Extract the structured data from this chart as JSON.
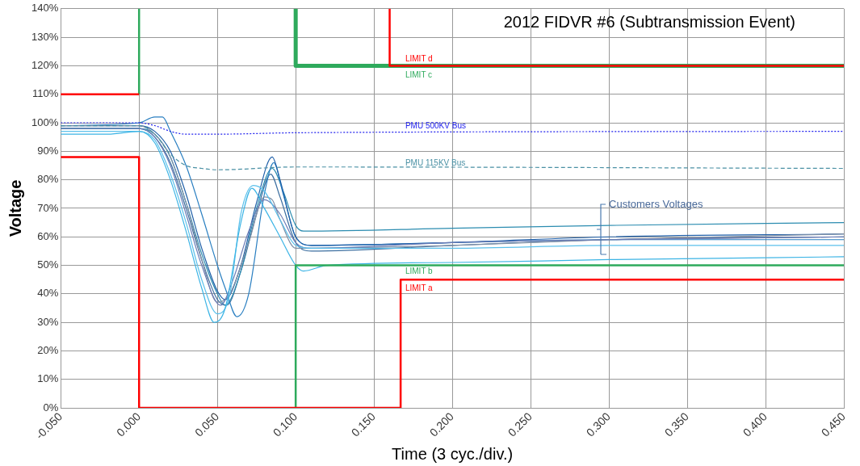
{
  "chart_data": {
    "type": "line",
    "title": "2012 FIDVR #6 (Subtransmission Event)",
    "xlabel": "Time (3 cyc./div.)",
    "ylabel": "Voltage",
    "xlim": [
      -0.05,
      0.45
    ],
    "xticks": [
      {
        "value": -0.05,
        "label": "-0.050"
      },
      {
        "value": 0,
        "label": "0.000"
      },
      {
        "value": 0.05,
        "label": "0.050"
      },
      {
        "value": 0.1,
        "label": "0.100"
      },
      {
        "value": 0.15,
        "label": "0.150"
      },
      {
        "value": 0.2,
        "label": "0.200"
      },
      {
        "value": 0.25,
        "label": "0.250"
      },
      {
        "value": 0.3,
        "label": "0.300"
      },
      {
        "value": 0.35,
        "label": "0.350"
      },
      {
        "value": 0.4,
        "label": "0.400"
      },
      {
        "value": 0.45,
        "label": "0.450"
      }
    ],
    "ylim": [
      0,
      140
    ],
    "yticks": [
      {
        "value": 0,
        "label": "0%"
      },
      {
        "value": 10,
        "label": "10%"
      },
      {
        "value": 20,
        "label": "20%"
      },
      {
        "value": 30,
        "label": "30%"
      },
      {
        "value": 40,
        "label": "40%"
      },
      {
        "value": 50,
        "label": "50%"
      },
      {
        "value": 60,
        "label": "60%"
      },
      {
        "value": 70,
        "label": "70%"
      },
      {
        "value": 80,
        "label": "80%"
      },
      {
        "value": 90,
        "label": "90%"
      },
      {
        "value": 100,
        "label": "100%"
      },
      {
        "value": 110,
        "label": "110%"
      },
      {
        "value": 120,
        "label": "120%"
      },
      {
        "value": 130,
        "label": "130%"
      },
      {
        "value": 140,
        "label": "140%"
      }
    ],
    "grid": true,
    "legend": false,
    "marker": "none",
    "annotations": [
      "Customers Voltages"
    ],
    "series": [
      {
        "name": "LIMIT d",
        "color": "#ff0000",
        "line_style": "solid",
        "x": [
          0.16,
          0.16,
          0.45
        ],
        "values": [
          140,
          120,
          120
        ]
      },
      {
        "name": "LIMIT c",
        "color": "#2eaa5c",
        "line_style": "solid",
        "x": [
          0.1,
          0.1,
          0.45
        ],
        "values": [
          140,
          120,
          120
        ]
      },
      {
        "name": "LIMIT a",
        "color": "#ff0000",
        "line_style": "solid",
        "x": [
          -0.05,
          0,
          0,
          0.167,
          0.167,
          0.45
        ],
        "values": [
          88,
          88,
          0,
          0,
          45,
          45
        ]
      },
      {
        "name": "LIMIT b",
        "color": "#2eaa5c",
        "line_style": "solid",
        "x": [
          0.1,
          0.1,
          0.45
        ],
        "values": [
          0,
          50,
          50
        ]
      },
      {
        "color": "#ff0000",
        "line_style": "solid",
        "x": [
          -0.05,
          0
        ],
        "values": [
          110,
          110
        ]
      },
      {
        "color": "#2eaa5c",
        "line_style": "solid",
        "x": [
          0,
          0
        ],
        "values": [
          110,
          140
        ]
      },
      {
        "name": "PMU 500KV Bus",
        "color": "#2222ee",
        "line_style": "dotted",
        "x": [
          -0.05,
          0,
          0.01,
          0.02,
          0.03,
          0.05,
          0.1,
          0.45
        ],
        "values": [
          100,
          100,
          99,
          97,
          96,
          96,
          96.5,
          97
        ]
      },
      {
        "name": "PMU 115KV Bus",
        "color": "#4a90a4",
        "line_style": "dashed",
        "x": [
          -0.05,
          0,
          0.01,
          0.02,
          0.03,
          0.04,
          0.05,
          0.1,
          0.45
        ],
        "values": [
          99,
          99,
          96,
          89,
          85,
          84,
          83.5,
          84.5,
          84
        ]
      },
      {
        "color": "#3cb4e5",
        "line_style": "solid",
        "x": [
          -0.05,
          -0.02,
          0,
          0.01,
          0.02,
          0.03,
          0.04,
          0.048,
          0.055,
          0.065,
          0.072,
          0.08,
          0.09,
          0.1,
          0.105,
          0.12,
          0.2,
          0.3,
          0.45
        ],
        "values": [
          96,
          96,
          97,
          93,
          80,
          62,
          42,
          30,
          35,
          65,
          77,
          70,
          60,
          50,
          48,
          50,
          51,
          52,
          53
        ]
      },
      {
        "color": "#5bc0eb",
        "line_style": "solid",
        "x": [
          -0.05,
          0,
          0.01,
          0.02,
          0.03,
          0.04,
          0.05,
          0.058,
          0.065,
          0.073,
          0.08,
          0.09,
          0.1,
          0.11,
          0.2,
          0.3,
          0.45
        ],
        "values": [
          97,
          97,
          94,
          82,
          65,
          45,
          33,
          40,
          68,
          78,
          76,
          66,
          57,
          56,
          56,
          57,
          57
        ]
      },
      {
        "color": "#6a7bb5",
        "line_style": "solid",
        "x": [
          -0.05,
          0,
          0.01,
          0.02,
          0.03,
          0.04,
          0.052,
          0.06,
          0.07,
          0.08,
          0.09,
          0.1,
          0.11,
          0.2,
          0.3,
          0.45
        ],
        "values": [
          98,
          98,
          95,
          85,
          68,
          50,
          36,
          45,
          62,
          73,
          68,
          58,
          56,
          58,
          59,
          60
        ]
      },
      {
        "color": "#7f8fa6",
        "line_style": "solid",
        "x": [
          -0.05,
          0,
          0.01,
          0.02,
          0.03,
          0.04,
          0.05,
          0.058,
          0.07,
          0.08,
          0.085,
          0.09,
          0.1,
          0.11,
          0.2,
          0.3,
          0.45
        ],
        "values": [
          99,
          99,
          96,
          88,
          72,
          52,
          37,
          40,
          58,
          74,
          73,
          66,
          56,
          56,
          57,
          59,
          61
        ]
      },
      {
        "color": "#1f5fa8",
        "line_style": "solid",
        "x": [
          -0.05,
          0,
          0.01,
          0.02,
          0.03,
          0.04,
          0.05,
          0.055,
          0.065,
          0.075,
          0.085,
          0.09,
          0.1,
          0.11,
          0.2,
          0.3,
          0.45
        ],
        "values": [
          99,
          99,
          97,
          90,
          75,
          56,
          41,
          38,
          50,
          72,
          88,
          80,
          60,
          57,
          58,
          60,
          61
        ]
      },
      {
        "color": "#2a7fc1",
        "line_style": "solid",
        "x": [
          -0.05,
          0,
          0.01,
          0.015,
          0.02,
          0.03,
          0.04,
          0.05,
          0.055,
          0.0625,
          0.07,
          0.08,
          0.086,
          0.092,
          0.1,
          0.11,
          0.2,
          0.3,
          0.45
        ],
        "values": [
          99,
          100,
          102,
          102,
          97,
          85,
          68,
          50,
          42,
          32,
          40,
          75,
          86,
          75,
          60,
          57,
          58,
          59,
          59
        ]
      },
      {
        "color": "#2b8cb0",
        "line_style": "solid",
        "x": [
          -0.05,
          0,
          0.01,
          0.02,
          0.03,
          0.04,
          0.05,
          0.055,
          0.065,
          0.075,
          0.085,
          0.092,
          0.1,
          0.105,
          0.2,
          0.3,
          0.45
        ],
        "values": [
          98,
          98,
          96,
          88,
          72,
          54,
          40,
          36,
          48,
          70,
          84,
          76,
          64,
          62,
          63,
          64,
          65
        ]
      },
      {
        "color": "#3d6fa0",
        "line_style": "solid",
        "x": [
          -0.05,
          0,
          0.01,
          0.02,
          0.03,
          0.04,
          0.05,
          0.056,
          0.065,
          0.075,
          0.084,
          0.09,
          0.1,
          0.11,
          0.2,
          0.3,
          0.45
        ],
        "values": [
          98,
          98,
          95,
          86,
          70,
          52,
          38,
          36,
          48,
          68,
          82,
          74,
          58,
          55,
          57,
          59,
          60
        ]
      }
    ]
  }
}
